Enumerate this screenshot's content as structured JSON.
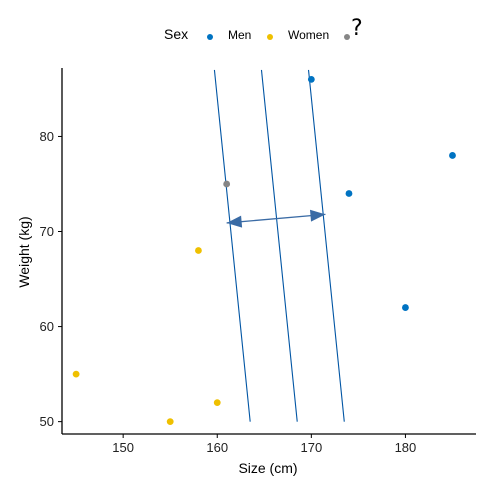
{
  "legend": {
    "title": "Sex",
    "items": [
      {
        "label": "Men",
        "color": "#0073C2"
      },
      {
        "label": "Women",
        "color": "#EFC000"
      },
      {
        "label": "",
        "color": "#868686"
      }
    ],
    "extra_text": "?"
  },
  "chart_data": {
    "type": "scatter",
    "xlabel": "Size (cm)",
    "ylabel": "Weight (kg)",
    "xlim": [
      143.5,
      187.5
    ],
    "ylim": [
      48.7,
      87.2
    ],
    "xticks": [
      150,
      160,
      170,
      180
    ],
    "yticks": [
      50,
      60,
      70,
      80
    ],
    "grid": false,
    "legend_position": "top",
    "series": [
      {
        "name": "Men",
        "color": "#0073C2",
        "points": [
          [
            170,
            86
          ],
          [
            185,
            78
          ],
          [
            174,
            74
          ],
          [
            180,
            62
          ]
        ]
      },
      {
        "name": "Women",
        "color": "#EFC000",
        "points": [
          [
            145,
            55
          ],
          [
            155,
            50
          ],
          [
            158,
            68
          ],
          [
            160,
            52
          ]
        ]
      },
      {
        "name": "",
        "color": "#868686",
        "points": [
          [
            161,
            75
          ]
        ]
      }
    ],
    "annotations": {
      "lines": [
        {
          "color": "#0055A4",
          "from": [
            159.7,
            87.0
          ],
          "to": [
            163.5,
            50.0
          ]
        },
        {
          "color": "#0055A4",
          "from": [
            164.7,
            87.0
          ],
          "to": [
            168.5,
            50.0
          ]
        },
        {
          "color": "#0055A4",
          "from": [
            169.7,
            87.0
          ],
          "to": [
            173.5,
            50.0
          ]
        }
      ],
      "arrow": {
        "color": "#3A6BA5",
        "from": [
          161.0,
          70.9
        ],
        "to": [
          171.5,
          71.8
        ]
      }
    }
  }
}
